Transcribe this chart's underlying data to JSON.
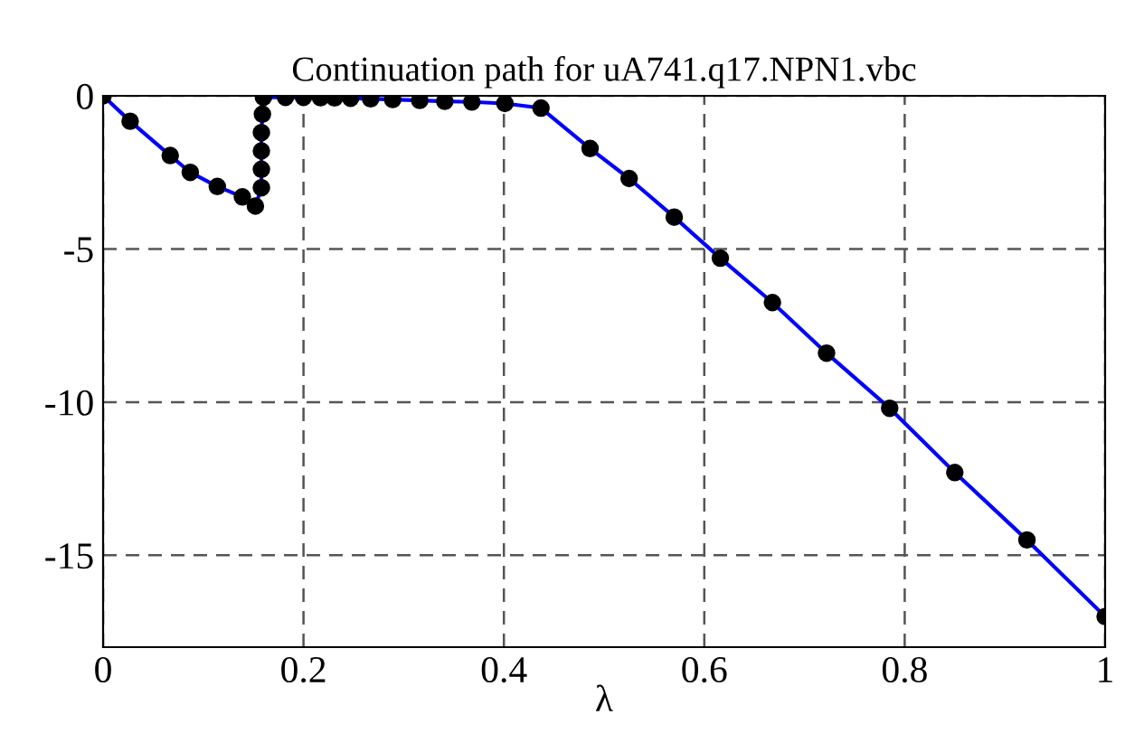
{
  "chart_data": {
    "type": "line",
    "title": "Continuation path for uA741.q17.NPN1.vbc",
    "xlabel": "λ",
    "series": [
      {
        "color": "#0000ff",
        "x": [
          0,
          0.027,
          0.067,
          0.087,
          0.114,
          0.139,
          0.152,
          0.158,
          0.158,
          0.158,
          0.158,
          0.159,
          0.16,
          0.182,
          0.2,
          0.217,
          0.231,
          0.247,
          0.267,
          0.289,
          0.316,
          0.341,
          0.368,
          0.401,
          0.437,
          0.486,
          0.525,
          0.57,
          0.616,
          0.668,
          0.722,
          0.785,
          0.85,
          0.922,
          1.0
        ],
        "values": [
          0,
          -0.83,
          -1.95,
          -2.5,
          -2.96,
          -3.3,
          -3.6,
          -3.0,
          -2.4,
          -1.8,
          -1.2,
          -0.6,
          -0.05,
          -0.05,
          -0.05,
          -0.06,
          -0.07,
          -0.08,
          -0.1,
          -0.12,
          -0.15,
          -0.18,
          -0.2,
          -0.25,
          -0.4,
          -1.72,
          -2.7,
          -3.96,
          -5.3,
          -6.75,
          -8.4,
          -10.2,
          -12.3,
          -14.5,
          -17
        ]
      }
    ],
    "marker": "circle",
    "line_style": "solid",
    "grid": true,
    "xlim": [
      0,
      1
    ],
    "xticks": [
      0,
      0.2,
      0.4,
      0.6,
      0.8,
      1
    ],
    "ylim": [
      -18,
      0
    ],
    "yticks": [
      -15,
      -10,
      -5,
      0
    ]
  }
}
